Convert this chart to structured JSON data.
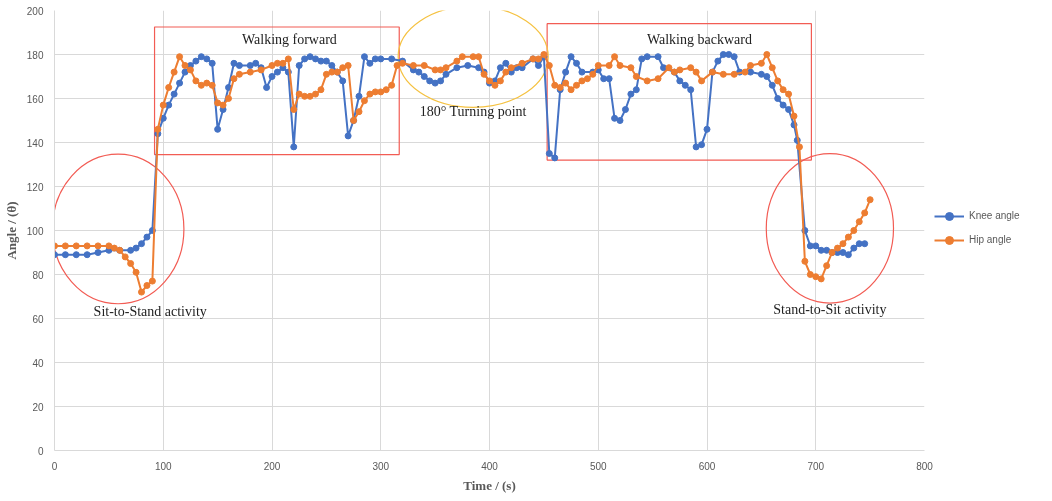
{
  "chart_data": {
    "type": "line",
    "xlabel": "Time / (s)",
    "ylabel": "Angle / (θ)",
    "xlim": [
      0,
      800
    ],
    "xticks": [
      0,
      100,
      200,
      300,
      400,
      500,
      600,
      700,
      800
    ],
    "ylim": [
      0,
      200
    ],
    "yticks": [
      0,
      20,
      40,
      60,
      80,
      100,
      120,
      140,
      160,
      180,
      200
    ],
    "grid": true,
    "legend": "right",
    "marker": "circle",
    "line_style": "solid",
    "series": [
      {
        "name": "Knee angle",
        "color": "#4472c4",
        "x": [
          0,
          10,
          20,
          30,
          40,
          50,
          60,
          70,
          75,
          80,
          85,
          90,
          95,
          100,
          105,
          110,
          115,
          120,
          125,
          130,
          135,
          140,
          145,
          150,
          155,
          160,
          165,
          170,
          180,
          185,
          190,
          195,
          200,
          205,
          210,
          215,
          220,
          225,
          230,
          235,
          240,
          245,
          250,
          255,
          260,
          265,
          270,
          275,
          280,
          285,
          290,
          295,
          300,
          310,
          320,
          330,
          335,
          340,
          345,
          350,
          355,
          360,
          370,
          380,
          390,
          395,
          400,
          405,
          410,
          415,
          420,
          425,
          430,
          440,
          445,
          450,
          455,
          460,
          465,
          470,
          475,
          480,
          485,
          495,
          500,
          505,
          510,
          515,
          520,
          525,
          530,
          535,
          540,
          545,
          555,
          560,
          570,
          575,
          580,
          585,
          590,
          595,
          600,
          605,
          610,
          615,
          620,
          625,
          630,
          640,
          650,
          655,
          660,
          665,
          670,
          675,
          680,
          683,
          690,
          695,
          700,
          705,
          710,
          715,
          720,
          725,
          730,
          735,
          740,
          745
        ],
        "values": [
          89,
          89,
          89,
          89,
          90,
          91,
          91,
          91,
          92,
          94,
          97,
          100,
          144,
          151,
          157,
          162,
          167,
          172,
          175,
          177,
          179,
          178,
          176,
          146,
          155,
          165,
          176,
          175,
          175,
          176,
          174,
          165,
          170,
          172,
          174,
          172,
          138,
          175,
          178,
          179,
          178,
          177,
          177,
          175,
          172,
          168,
          143,
          150,
          161,
          179,
          176,
          178,
          178,
          178,
          177,
          173,
          172,
          170,
          168,
          167,
          168,
          171,
          174,
          175,
          174,
          172,
          167,
          168,
          174,
          176,
          172,
          174,
          174,
          178,
          175,
          179,
          135,
          133,
          164,
          172,
          179,
          176,
          172,
          172,
          173,
          169,
          169,
          151,
          150,
          155,
          162,
          164,
          178,
          179,
          179,
          174,
          172,
          168,
          166,
          164,
          138,
          139,
          146,
          172,
          177,
          180,
          180,
          179,
          172,
          172,
          171,
          170,
          166,
          160,
          157,
          155,
          148,
          141,
          100,
          93,
          93,
          91,
          91,
          90,
          90,
          90,
          89,
          92,
          94,
          94
        ]
      },
      {
        "name": "Hip angle",
        "color": "#ed7d31",
        "x": [
          0,
          10,
          20,
          30,
          40,
          50,
          55,
          60,
          65,
          70,
          75,
          80,
          85,
          90,
          95,
          100,
          105,
          110,
          115,
          120,
          125,
          130,
          135,
          140,
          145,
          150,
          155,
          160,
          165,
          170,
          180,
          190,
          200,
          205,
          210,
          215,
          220,
          225,
          230,
          235,
          240,
          245,
          250,
          255,
          260,
          265,
          270,
          275,
          280,
          285,
          290,
          295,
          300,
          305,
          310,
          315,
          320,
          330,
          340,
          350,
          355,
          360,
          370,
          375,
          385,
          390,
          395,
          400,
          405,
          410,
          415,
          420,
          430,
          440,
          445,
          450,
          455,
          460,
          465,
          470,
          475,
          480,
          485,
          490,
          495,
          500,
          510,
          515,
          520,
          530,
          535,
          545,
          555,
          565,
          570,
          575,
          585,
          590,
          595,
          605,
          615,
          625,
          635,
          640,
          650,
          655,
          660,
          665,
          670,
          675,
          680,
          685,
          690,
          695,
          700,
          705,
          710,
          715,
          720,
          725,
          730,
          735,
          740,
          745,
          750
        ],
        "values": [
          93,
          93,
          93,
          93,
          93,
          93,
          92,
          91,
          88,
          85,
          81,
          72,
          75,
          77,
          146,
          157,
          165,
          172,
          179,
          175,
          173,
          168,
          166,
          167,
          166,
          158,
          157,
          160,
          169,
          171,
          172,
          173,
          175,
          176,
          176,
          178,
          155,
          162,
          161,
          161,
          162,
          164,
          171,
          172,
          172,
          174,
          175,
          150,
          154,
          159,
          162,
          163,
          163,
          164,
          166,
          175,
          176,
          175,
          175,
          173,
          173,
          174,
          177,
          179,
          179,
          179,
          171,
          168,
          166,
          168,
          172,
          174,
          176,
          178,
          178,
          180,
          175,
          166,
          165,
          167,
          164,
          166,
          168,
          169,
          171,
          175,
          175,
          179,
          175,
          174,
          170,
          168,
          169,
          174,
          172,
          173,
          174,
          172,
          168,
          172,
          171,
          171,
          172,
          175,
          176,
          180,
          174,
          168,
          164,
          162,
          152,
          138,
          86,
          80,
          79,
          78,
          84,
          90,
          92,
          94,
          97,
          100,
          104,
          108,
          114
        ]
      }
    ],
    "annotations": [
      "Walking forward",
      "180° Turning point",
      "Walking backward",
      "Sit-to-Stand activity",
      "Stand-to-Sit activity"
    ]
  }
}
